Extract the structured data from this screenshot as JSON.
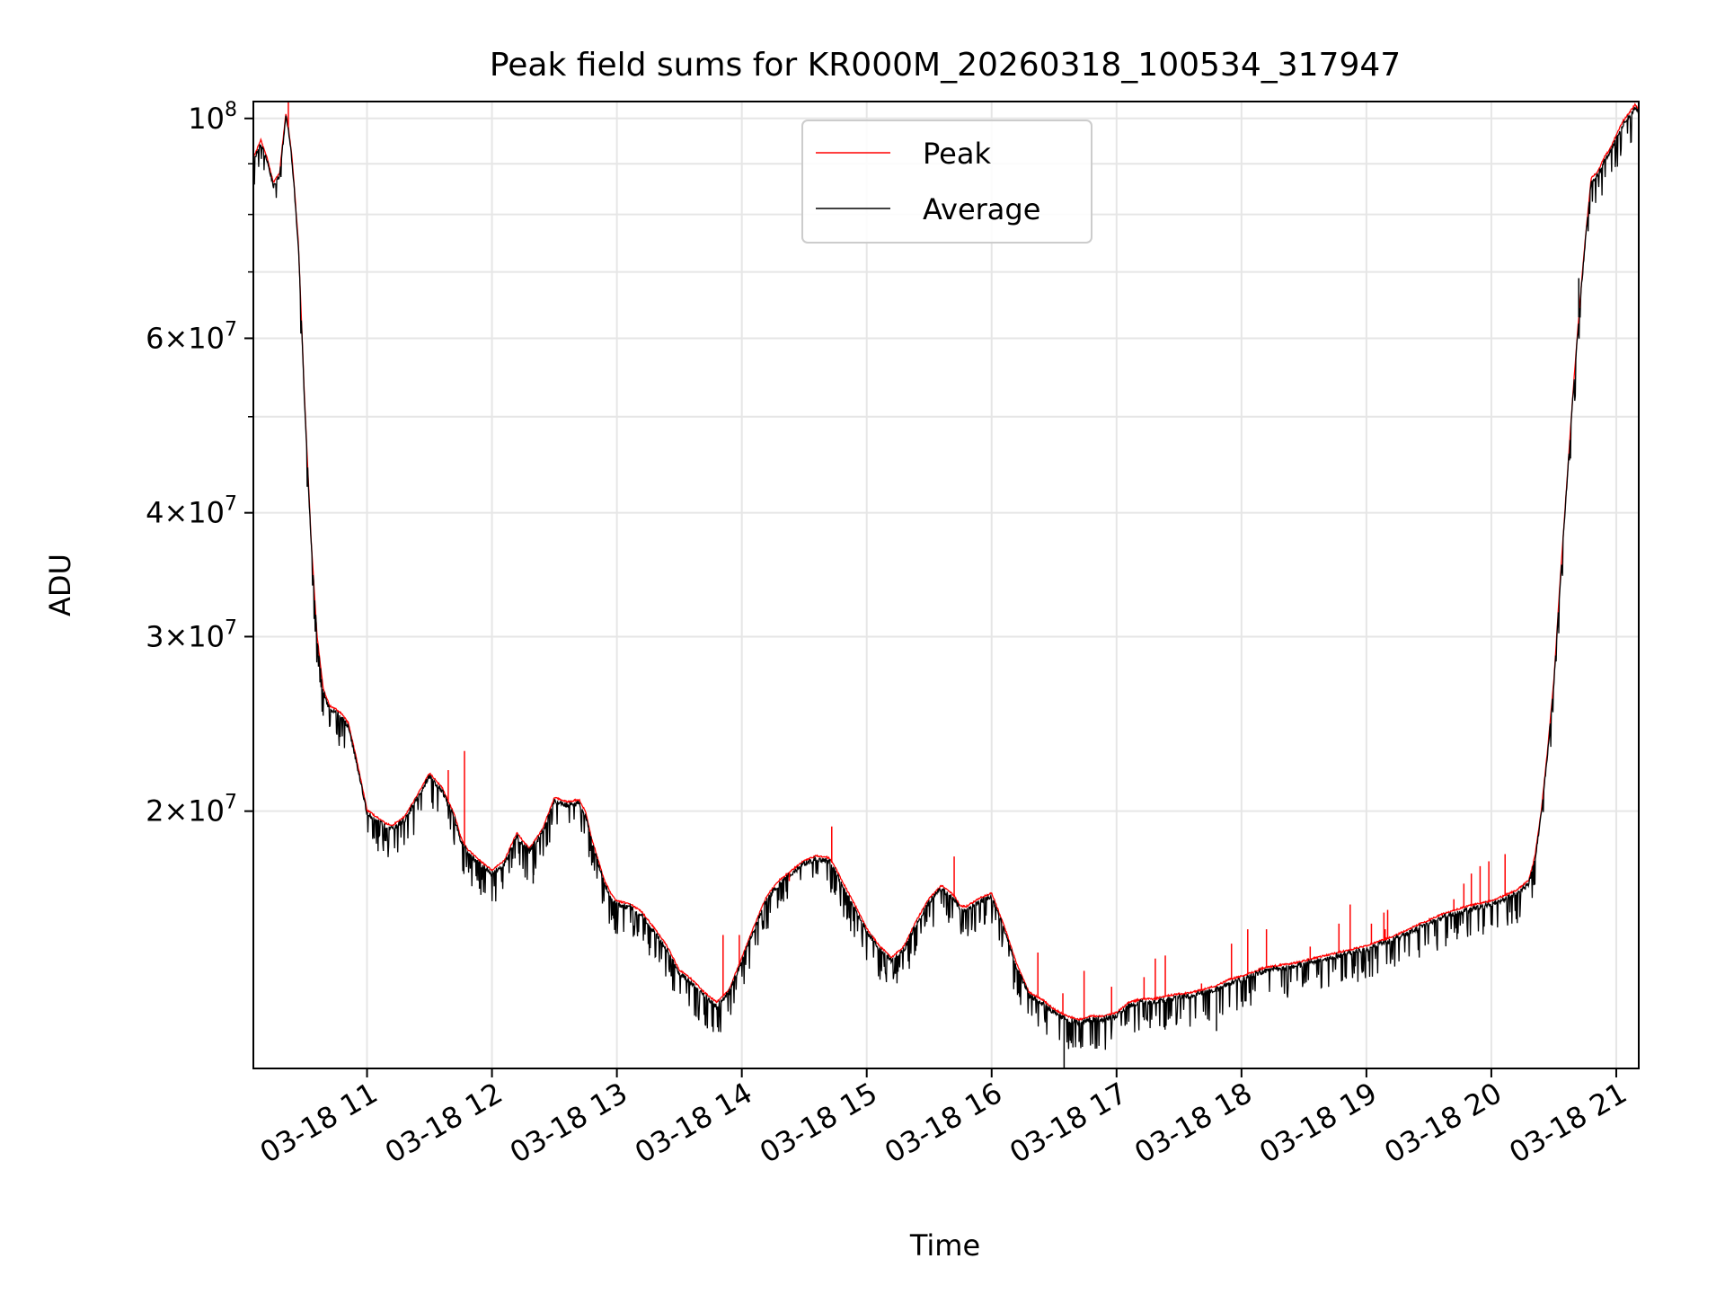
{
  "chart_data": {
    "type": "line",
    "title": "Peak field sums for KR000M_20260318_100534_317947",
    "xlabel": "Time",
    "ylabel": "ADU",
    "yscale": "log",
    "grid": true,
    "legend_position": "upper center",
    "xlim_hours": [
      10.09,
      21.18
    ],
    "ylim": [
      11000000,
      104000000
    ],
    "x_tick_labels": [
      "03-18 11",
      "03-18 12",
      "03-18 13",
      "03-18 14",
      "03-18 15",
      "03-18 16",
      "03-18 17",
      "03-18 18",
      "03-18 19",
      "03-18 20",
      "03-18 21"
    ],
    "x_tick_hours": [
      11,
      12,
      13,
      14,
      15,
      16,
      17,
      18,
      19,
      20,
      21
    ],
    "y_major_ticks": [
      {
        "value": 20000000,
        "mantissa": "2",
        "exp": "7"
      },
      {
        "value": 30000000,
        "mantissa": "3",
        "exp": "7"
      },
      {
        "value": 40000000,
        "mantissa": "4",
        "exp": "7"
      },
      {
        "value": 60000000,
        "mantissa": "6",
        "exp": "7"
      },
      {
        "value": 100000000,
        "mantissa": "",
        "exp": "8"
      }
    ],
    "y_minor_ticks": [
      50000000,
      70000000,
      80000000,
      90000000
    ],
    "series": [
      {
        "name": "Peak",
        "color": "#ff0000"
      },
      {
        "name": "Average",
        "color": "#000000"
      }
    ],
    "average_profile_hours": [
      10.09,
      10.15,
      10.2,
      10.25,
      10.3,
      10.35,
      10.37,
      10.4,
      10.45,
      10.5,
      10.55,
      10.6,
      10.65,
      10.7,
      10.75,
      10.8,
      10.85,
      10.9,
      10.95,
      11.0,
      11.05,
      11.1,
      11.15,
      11.2,
      11.3,
      11.4,
      11.5,
      11.6,
      11.7,
      11.75,
      11.8,
      11.9,
      12.0,
      12.1,
      12.2,
      12.25,
      12.3,
      12.4,
      12.5,
      12.6,
      12.7,
      12.75,
      12.8,
      12.9,
      12.95,
      13.0,
      13.1,
      13.2,
      13.3,
      13.4,
      13.5,
      13.6,
      13.7,
      13.8,
      13.9,
      14.0,
      14.1,
      14.2,
      14.3,
      14.4,
      14.5,
      14.6,
      14.7,
      14.75,
      14.8,
      14.9,
      15.0,
      15.1,
      15.2,
      15.3,
      15.4,
      15.5,
      15.6,
      15.7,
      15.75,
      15.8,
      15.9,
      16.0,
      16.1,
      16.2,
      16.3,
      16.4,
      16.5,
      16.6,
      16.7,
      16.8,
      16.9,
      17.0,
      17.1,
      17.2,
      17.3,
      17.4,
      17.6,
      17.8,
      17.9,
      18.0,
      18.2,
      18.4,
      18.6,
      18.8,
      19.0,
      19.2,
      19.4,
      19.6,
      19.8,
      20.0,
      20.2,
      20.3,
      20.35,
      20.4,
      20.45,
      20.5,
      20.55,
      20.6,
      20.65,
      20.7,
      20.75,
      20.8,
      20.85,
      20.9,
      20.95,
      21.0,
      21.05,
      21.1,
      21.15,
      21.18
    ],
    "average_profile_values": [
      91000000,
      95000000,
      91000000,
      86000000,
      88000000,
      101000000,
      98000000,
      91000000,
      75000000,
      52000000,
      38000000,
      30000000,
      26500000,
      25500000,
      25300000,
      25000000,
      24500000,
      23000000,
      21500000,
      20000000,
      19800000,
      19600000,
      19400000,
      19300000,
      19700000,
      20700000,
      21800000,
      21100000,
      19800000,
      18800000,
      18300000,
      17800000,
      17400000,
      17800000,
      19000000,
      18600000,
      18300000,
      19100000,
      20600000,
      20400000,
      20500000,
      19900000,
      18700000,
      17000000,
      16500000,
      16200000,
      16100000,
      15800000,
      15200000,
      14600000,
      13800000,
      13500000,
      13100000,
      12800000,
      13200000,
      14200000,
      15300000,
      16400000,
      17000000,
      17400000,
      17800000,
      18000000,
      17900000,
      17500000,
      17000000,
      16100000,
      15200000,
      14600000,
      14200000,
      14600000,
      15500000,
      16300000,
      16800000,
      16400000,
      16000000,
      16000000,
      16300000,
      16500000,
      15300000,
      14000000,
      13100000,
      12900000,
      12600000,
      12400000,
      12300000,
      12400000,
      12400000,
      12500000,
      12800000,
      12900000,
      12900000,
      13000000,
      13100000,
      13300000,
      13500000,
      13600000,
      13900000,
      14000000,
      14200000,
      14400000,
      14600000,
      14900000,
      15300000,
      15700000,
      16000000,
      16200000,
      16600000,
      17000000,
      18000000,
      20000000,
      23000000,
      27000000,
      34000000,
      42000000,
      52000000,
      63000000,
      75000000,
      87000000,
      88000000,
      91000000,
      93000000,
      96000000,
      99000000,
      101000000,
      103000000,
      102000000
    ],
    "peak_spikes": [
      {
        "hour": 10.37,
        "value": 103900000
      },
      {
        "hour": 11.65,
        "value": 22000000
      },
      {
        "hour": 11.78,
        "value": 23000000
      },
      {
        "hour": 13.85,
        "value": 15000000
      },
      {
        "hour": 13.98,
        "value": 15000000
      },
      {
        "hour": 14.38,
        "value": 17000000
      },
      {
        "hour": 14.72,
        "value": 19300000
      },
      {
        "hour": 15.24,
        "value": 14400000
      },
      {
        "hour": 15.7,
        "value": 18000000
      },
      {
        "hour": 16.37,
        "value": 14400000
      },
      {
        "hour": 16.57,
        "value": 13100000
      },
      {
        "hour": 16.74,
        "value": 13800000
      },
      {
        "hour": 16.96,
        "value": 13300000
      },
      {
        "hour": 17.22,
        "value": 13600000
      },
      {
        "hour": 17.31,
        "value": 14200000
      },
      {
        "hour": 17.39,
        "value": 14300000
      },
      {
        "hour": 17.68,
        "value": 13400000
      },
      {
        "hour": 17.92,
        "value": 14700000
      },
      {
        "hour": 18.05,
        "value": 15200000
      },
      {
        "hour": 18.2,
        "value": 15200000
      },
      {
        "hour": 18.55,
        "value": 14600000
      },
      {
        "hour": 18.78,
        "value": 15400000
      },
      {
        "hour": 18.87,
        "value": 16100000
      },
      {
        "hour": 19.04,
        "value": 15400000
      },
      {
        "hour": 19.14,
        "value": 15800000
      },
      {
        "hour": 19.15,
        "value": 15200000
      },
      {
        "hour": 19.17,
        "value": 15900000
      },
      {
        "hour": 19.7,
        "value": 16300000
      },
      {
        "hour": 19.78,
        "value": 16900000
      },
      {
        "hour": 19.84,
        "value": 17300000
      },
      {
        "hour": 19.91,
        "value": 17600000
      },
      {
        "hour": 19.98,
        "value": 17800000
      },
      {
        "hour": 20.11,
        "value": 18100000
      }
    ],
    "average_dips": [
      {
        "hour": 11.9,
        "value": 16700000
      },
      {
        "hour": 12.33,
        "value": 16900000
      },
      {
        "hour": 13.82,
        "value": 12400000
      },
      {
        "hour": 16.58,
        "value": 11000000
      },
      {
        "hour": 16.7,
        "value": 11700000
      },
      {
        "hour": 17.8,
        "value": 12000000
      },
      {
        "hour": 20.7,
        "value": 69000000
      }
    ]
  }
}
